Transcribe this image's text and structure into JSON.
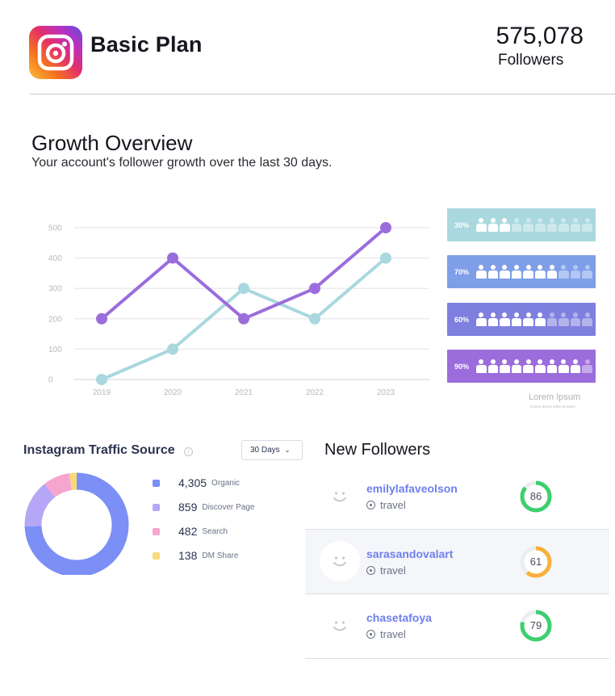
{
  "header": {
    "logo_icon": "instagram-logo-icon",
    "plan_title": "Basic Plan",
    "followers_count": "575,078",
    "followers_label": "Followers"
  },
  "growth": {
    "title": "Growth Overview",
    "subtitle": "Your account's follower growth over the last 30 days."
  },
  "chart_data": {
    "type": "line",
    "title": "",
    "xlabel": "",
    "ylabel": "",
    "x": [
      "2019",
      "2020",
      "2021",
      "2022",
      "2023"
    ],
    "ylim": [
      0,
      500
    ],
    "yticks": [
      "0",
      "100",
      "200",
      "300",
      "400",
      "500"
    ],
    "grid": true,
    "series": [
      {
        "values": [
          200,
          400,
          200,
          300,
          500
        ],
        "color": "#9b6ddc"
      },
      {
        "values": [
          0,
          100,
          300,
          200,
          400
        ],
        "color": "#a9d8de"
      }
    ]
  },
  "infographic": {
    "rows": [
      {
        "label": "30%",
        "filled": 3,
        "total": 10,
        "color": "#a9d8de"
      },
      {
        "label": "70%",
        "filled": 7,
        "total": 10,
        "color": "#7f9ee8"
      },
      {
        "label": "60%",
        "filled": 6,
        "total": 10,
        "color": "#7f7fe0"
      },
      {
        "label": "90%",
        "filled": 9,
        "total": 10,
        "color": "#9b6ddc"
      }
    ],
    "icon": "person-icon",
    "caption_title": "Lorem Ipsum",
    "caption_sub": "*Lorem ipsum dolor sit amet"
  },
  "traffic": {
    "title": "Instagram Traffic Source",
    "info_icon": "info-icon",
    "period_select": "30 Days",
    "sources": [
      {
        "value": "4,305",
        "value_num": 4305,
        "label": "Organic",
        "color": "#7b8ff7"
      },
      {
        "value": "859",
        "value_num": 859,
        "label": "Discover Page",
        "color": "#b6a6f7"
      },
      {
        "value": "482",
        "value_num": 482,
        "label": "Search",
        "color": "#f6a5cf"
      },
      {
        "value": "138",
        "value_num": 138,
        "label": "DM Share",
        "color": "#f7da7a"
      }
    ]
  },
  "new_followers": {
    "title": "New Followers",
    "items": [
      {
        "username": "emilylafaveolson",
        "tag": "travel",
        "score": "86",
        "score_num": 86,
        "color": "#3ccf6e"
      },
      {
        "username": "sarasandovalart",
        "tag": "travel",
        "score": "61",
        "score_num": 61,
        "color": "#f7b13b"
      },
      {
        "username": "chasetafoya",
        "tag": "travel",
        "score": "79",
        "score_num": 79,
        "color": "#3ccf6e"
      }
    ]
  }
}
